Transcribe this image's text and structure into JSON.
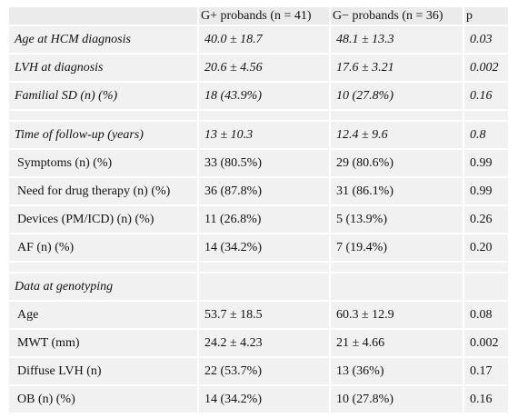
{
  "table": {
    "header": [
      "",
      "G+ probands (n = 41)",
      "G− probands (n = 36)",
      "p"
    ],
    "rows": [
      {
        "kind": "section",
        "cells": [
          "Age at HCM diagnosis",
          "40.0 ± 18.7",
          "48.1 ± 13.3",
          "0.03"
        ]
      },
      {
        "kind": "section",
        "cells": [
          "LVH at diagnosis",
          "20.6 ± 4.56",
          "17.6 ± 3.21",
          "0.002"
        ]
      },
      {
        "kind": "section",
        "cells": [
          "Familial SD (n) (%)",
          "18 (43.9%)",
          "10 (27.8%)",
          "0.16"
        ]
      },
      {
        "kind": "spacer",
        "cells": [
          "",
          "",
          "",
          ""
        ]
      },
      {
        "kind": "section",
        "cells": [
          "Time of follow-up (years)",
          "13 ± 10.3",
          "12.4 ± 9.6",
          "0.8"
        ]
      },
      {
        "kind": "sub",
        "cells": [
          "Symptoms (n) (%)",
          "33 (80.5%)",
          "29 (80.6%)",
          "0.99"
        ]
      },
      {
        "kind": "sub",
        "cells": [
          "Need for drug therapy (n) (%)",
          "36 (87.8%)",
          "31 (86.1%)",
          "0.99"
        ]
      },
      {
        "kind": "sub",
        "cells": [
          "Devices (PM/ICD) (n) (%)",
          "11 (26.8%)",
          "5 (13.9%)",
          "0.26"
        ]
      },
      {
        "kind": "sub",
        "cells": [
          "AF (n) (%)",
          "14 (34.2%)",
          "7 (19.4%)",
          "0.20"
        ]
      },
      {
        "kind": "spacer",
        "cells": [
          "",
          "",
          "",
          ""
        ]
      },
      {
        "kind": "section",
        "cells": [
          "Data at genotyping",
          "",
          "",
          ""
        ]
      },
      {
        "kind": "sub",
        "cells": [
          "Age",
          "53.7 ± 18.5",
          "60.3 ± 12.9",
          "0.08"
        ]
      },
      {
        "kind": "sub",
        "cells": [
          "MWT (mm)",
          "24.2 ± 4.23",
          "21 ± 4.66",
          "0.002"
        ]
      },
      {
        "kind": "sub",
        "cells": [
          "Diffuse LVH (n)",
          "22 (53.7%)",
          "13 (36%)",
          "0.17"
        ]
      },
      {
        "kind": "sub",
        "cells": [
          "OB (n) (%)",
          "14 (34.2%)",
          "10 (27.8%)",
          "0.16"
        ]
      }
    ]
  }
}
